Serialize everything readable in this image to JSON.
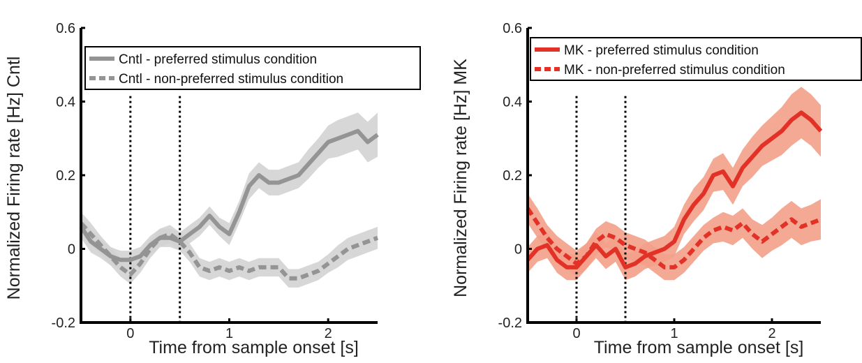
{
  "chart_data": [
    {
      "type": "line",
      "title": "",
      "xlabel": "Time from sample onset [s]",
      "ylabel": "Normalized Firing rate [Hz] Cntl",
      "xlim": [
        -0.5,
        2.5
      ],
      "ylim": [
        -0.2,
        0.6
      ],
      "xticks": [
        0,
        1,
        2
      ],
      "yticks": [
        -0.2,
        0,
        0.2,
        0.4,
        0.6
      ],
      "ytick_labels": [
        "-0.2",
        "0",
        "0.2",
        "0.4",
        "0.6"
      ],
      "vlines": [
        0,
        0.5
      ],
      "legend_position": "top",
      "grid": false,
      "colors": {
        "line": "#949494",
        "band": "#d3d3d3"
      },
      "series": [
        {
          "name": "Cntl - preferred stimulus condition",
          "style": "solid",
          "x": [
            -0.5,
            -0.4,
            -0.3,
            -0.2,
            -0.1,
            0.0,
            0.1,
            0.2,
            0.3,
            0.4,
            0.5,
            0.6,
            0.7,
            0.8,
            0.9,
            1.0,
            1.1,
            1.2,
            1.3,
            1.4,
            1.5,
            1.6,
            1.7,
            1.8,
            1.9,
            2.0,
            2.1,
            2.2,
            2.3,
            2.4,
            2.5
          ],
          "y": [
            0.06,
            0.02,
            0.0,
            -0.02,
            -0.03,
            -0.03,
            -0.02,
            0.01,
            0.03,
            0.03,
            0.02,
            0.04,
            0.06,
            0.09,
            0.06,
            0.04,
            0.1,
            0.17,
            0.2,
            0.18,
            0.18,
            0.19,
            0.2,
            0.23,
            0.26,
            0.29,
            0.3,
            0.31,
            0.32,
            0.29,
            0.31
          ],
          "err": [
            0.03,
            0.03,
            0.025,
            0.025,
            0.025,
            0.025,
            0.025,
            0.025,
            0.025,
            0.025,
            0.025,
            0.025,
            0.025,
            0.025,
            0.025,
            0.03,
            0.03,
            0.035,
            0.035,
            0.035,
            0.035,
            0.035,
            0.035,
            0.04,
            0.04,
            0.045,
            0.05,
            0.05,
            0.05,
            0.055,
            0.06
          ]
        },
        {
          "name": "Cntl - non-preferred stimulus condition",
          "style": "dashed",
          "x": [
            -0.5,
            -0.4,
            -0.3,
            -0.2,
            -0.1,
            0.0,
            0.1,
            0.2,
            0.3,
            0.4,
            0.5,
            0.6,
            0.7,
            0.8,
            0.9,
            1.0,
            1.1,
            1.2,
            1.3,
            1.4,
            1.5,
            1.6,
            1.7,
            1.8,
            1.9,
            2.0,
            2.1,
            2.2,
            2.3,
            2.4,
            2.5
          ],
          "y": [
            0.07,
            0.04,
            0.01,
            -0.02,
            -0.05,
            -0.07,
            -0.04,
            0.0,
            0.03,
            0.04,
            0.02,
            -0.01,
            -0.05,
            -0.06,
            -0.05,
            -0.06,
            -0.05,
            -0.06,
            -0.05,
            -0.05,
            -0.05,
            -0.08,
            -0.08,
            -0.07,
            -0.06,
            -0.04,
            -0.02,
            0.0,
            0.01,
            0.02,
            0.03
          ],
          "err": [
            0.03,
            0.03,
            0.025,
            0.025,
            0.025,
            0.025,
            0.025,
            0.025,
            0.025,
            0.025,
            0.025,
            0.025,
            0.025,
            0.025,
            0.025,
            0.025,
            0.025,
            0.025,
            0.025,
            0.025,
            0.025,
            0.025,
            0.025,
            0.025,
            0.025,
            0.025,
            0.03,
            0.03,
            0.03,
            0.03,
            0.03
          ]
        }
      ]
    },
    {
      "type": "line",
      "title": "",
      "xlabel": "Time from sample onset [s]",
      "ylabel": "Normalized Firing rate [Hz] MK",
      "xlim": [
        -0.5,
        2.5
      ],
      "ylim": [
        -0.2,
        0.6
      ],
      "xticks": [
        0,
        1,
        2
      ],
      "yticks": [
        -0.2,
        0,
        0.2,
        0.4,
        0.6
      ],
      "ytick_labels": [
        "-0.2",
        "0",
        "0.2",
        "0.4",
        "0.6"
      ],
      "vlines": [
        0,
        0.5
      ],
      "legend_position": "top",
      "grid": false,
      "colors": {
        "line": "#e23228",
        "band": "#f3a088"
      },
      "series": [
        {
          "name": "MK - preferred stimulus condition",
          "style": "solid",
          "x": [
            -0.5,
            -0.4,
            -0.3,
            -0.2,
            -0.1,
            0.0,
            0.1,
            0.2,
            0.3,
            0.4,
            0.5,
            0.6,
            0.7,
            0.8,
            0.9,
            1.0,
            1.1,
            1.2,
            1.3,
            1.4,
            1.5,
            1.6,
            1.7,
            1.8,
            1.9,
            2.0,
            2.1,
            2.2,
            2.3,
            2.4,
            2.5
          ],
          "y": [
            -0.03,
            0.0,
            0.01,
            -0.03,
            -0.05,
            -0.05,
            -0.02,
            0.01,
            -0.02,
            0.0,
            -0.05,
            -0.04,
            -0.02,
            -0.01,
            0.0,
            0.02,
            0.08,
            0.12,
            0.15,
            0.2,
            0.21,
            0.17,
            0.22,
            0.25,
            0.28,
            0.3,
            0.32,
            0.35,
            0.37,
            0.35,
            0.32
          ],
          "err": [
            0.035,
            0.035,
            0.035,
            0.035,
            0.035,
            0.035,
            0.035,
            0.035,
            0.035,
            0.035,
            0.035,
            0.035,
            0.035,
            0.035,
            0.035,
            0.04,
            0.04,
            0.045,
            0.045,
            0.045,
            0.05,
            0.05,
            0.05,
            0.055,
            0.055,
            0.06,
            0.065,
            0.07,
            0.07,
            0.07,
            0.07
          ]
        },
        {
          "name": "MK - non-preferred stimulus condition",
          "style": "dashed",
          "x": [
            -0.5,
            -0.4,
            -0.3,
            -0.2,
            -0.1,
            0.0,
            0.1,
            0.2,
            0.3,
            0.4,
            0.5,
            0.6,
            0.7,
            0.8,
            0.9,
            1.0,
            1.1,
            1.2,
            1.3,
            1.4,
            1.5,
            1.6,
            1.7,
            1.8,
            1.9,
            2.0,
            2.1,
            2.2,
            2.3,
            2.4,
            2.5
          ],
          "y": [
            0.11,
            0.07,
            0.03,
            0.0,
            -0.02,
            -0.04,
            -0.02,
            0.02,
            0.04,
            0.03,
            0.01,
            0.0,
            -0.01,
            -0.03,
            -0.05,
            -0.05,
            -0.03,
            0.0,
            0.03,
            0.05,
            0.06,
            0.05,
            0.07,
            0.04,
            0.02,
            0.04,
            0.06,
            0.08,
            0.06,
            0.07,
            0.08
          ],
          "err": [
            0.04,
            0.04,
            0.035,
            0.035,
            0.035,
            0.035,
            0.035,
            0.035,
            0.035,
            0.035,
            0.035,
            0.035,
            0.035,
            0.035,
            0.035,
            0.035,
            0.035,
            0.035,
            0.035,
            0.035,
            0.04,
            0.04,
            0.04,
            0.04,
            0.045,
            0.045,
            0.05,
            0.05,
            0.05,
            0.05,
            0.055
          ]
        }
      ]
    }
  ]
}
